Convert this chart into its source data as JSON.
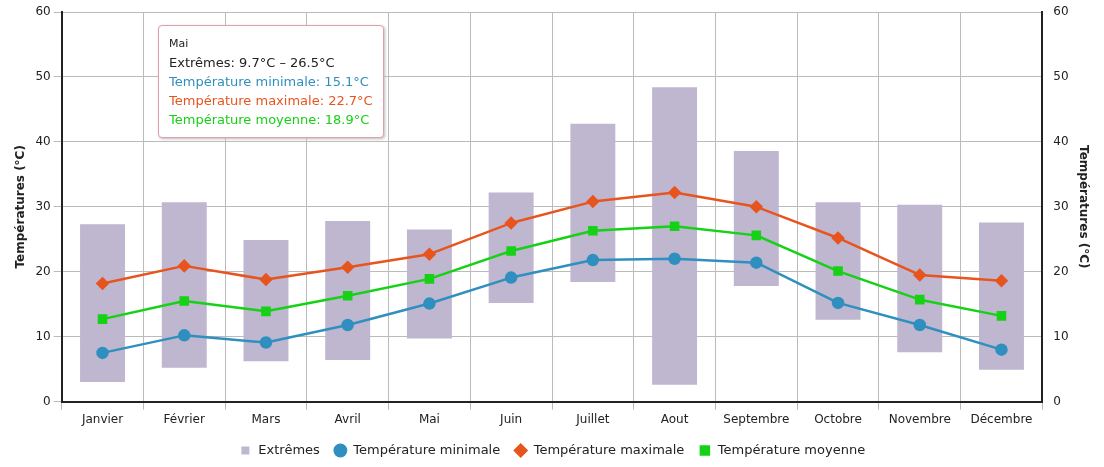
{
  "chart_data": {
    "type": "line",
    "ylabel": "Températures (°C)",
    "y2label": "Températures (°C)",
    "categories": [
      "Janvier",
      "Février",
      "Mars",
      "Avril",
      "Mai",
      "Juin",
      "Juillet",
      "Aout",
      "Septembre",
      "Octobre",
      "Novembre",
      "Décembre"
    ],
    "series": [
      {
        "name": "Extrêmes",
        "type": "bar",
        "color": "#bfb6d0",
        "base": [
          3.0,
          5.2,
          6.2,
          6.4,
          9.7,
          15.2,
          18.4,
          2.6,
          17.8,
          12.6,
          7.6,
          4.9
        ],
        "values": [
          24.3,
          25.5,
          18.7,
          21.4,
          16.8,
          17.0,
          24.4,
          45.8,
          20.8,
          18.1,
          22.7,
          22.7
        ]
      },
      {
        "name": "Température minimale",
        "color": "#2f8fbf",
        "marker": "circle",
        "values": [
          7.5,
          10.2,
          9.1,
          11.8,
          15.1,
          19.1,
          21.8,
          22.0,
          21.4,
          15.2,
          11.8,
          8.0
        ]
      },
      {
        "name": "Température maximale",
        "color": "#e8541e",
        "marker": "diamond",
        "values": [
          18.2,
          20.9,
          18.8,
          20.7,
          22.7,
          27.5,
          30.8,
          32.2,
          30.0,
          25.2,
          19.5,
          18.6
        ]
      },
      {
        "name": "Température moyenne",
        "color": "#16d116",
        "marker": "square",
        "values": [
          12.7,
          15.5,
          13.9,
          16.3,
          18.9,
          23.2,
          26.3,
          27.0,
          25.6,
          20.1,
          15.7,
          13.2
        ]
      }
    ],
    "ylim": [
      0,
      60
    ],
    "yticks": [
      0,
      10,
      20,
      30,
      40,
      50,
      60
    ],
    "y2lim": [
      0,
      60
    ],
    "y2ticks": [
      0,
      10,
      20,
      30,
      40,
      50,
      60
    ],
    "grid": true,
    "legend": "bottom",
    "annotations": [
      "Mai",
      "Extrêmes: 9.7°C – 26.5°C",
      "Température minimale: 15.1°C",
      "Température maximale: 22.7°C",
      "Température moyenne: 18.9°C"
    ]
  }
}
